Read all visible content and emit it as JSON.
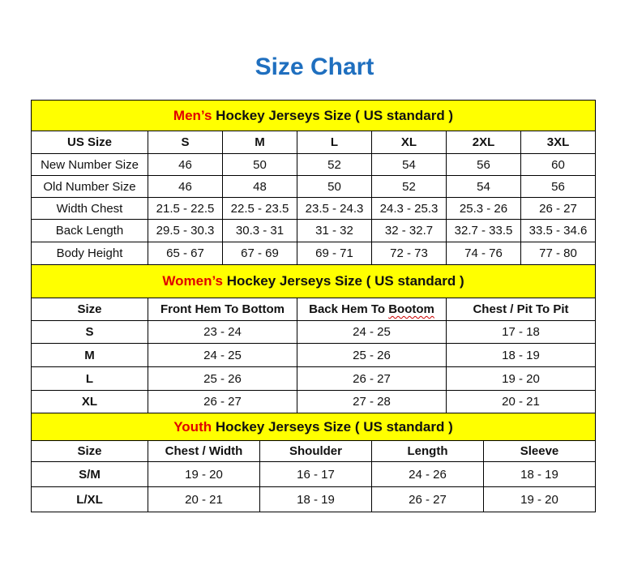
{
  "title": "Size Chart",
  "colors": {
    "title": "#1f6fbf",
    "header_bg": "#ffff00",
    "highlight": "#e00000"
  },
  "men": {
    "header_highlight": "Men’s",
    "header_rest": " Hockey Jerseys Size ( US standard )",
    "columns": [
      "US Size",
      "S",
      "M",
      "L",
      "XL",
      "2XL",
      "3XL"
    ],
    "rows": [
      [
        "New Number Size",
        "46",
        "50",
        "52",
        "54",
        "56",
        "60"
      ],
      [
        "Old Number Size",
        "46",
        "48",
        "50",
        "52",
        "54",
        "56"
      ],
      [
        "Width Chest",
        "21.5 - 22.5",
        "22.5 - 23.5",
        "23.5 - 24.3",
        "24.3 - 25.3",
        "25.3 - 26",
        "26 - 27"
      ],
      [
        "Back Length",
        "29.5 - 30.3",
        "30.3 - 31",
        "31 - 32",
        "32 - 32.7",
        "32.7 - 33.5",
        "33.5 - 34.6"
      ],
      [
        "Body Height",
        "65 - 67",
        "67 - 69",
        "69 - 71",
        "72 - 73",
        "74 - 76",
        "77 - 80"
      ]
    ]
  },
  "women": {
    "header_highlight": "Women’s",
    "header_rest": " Hockey Jerseys Size ( US standard )",
    "columns": [
      "Size",
      "Front Hem To Bottom",
      "Back Hem To Bootom",
      "Chest / Pit To Pit"
    ],
    "rows": [
      [
        "S",
        "23 - 24",
        "24 - 25",
        "17 - 18"
      ],
      [
        "M",
        "24 - 25",
        "25 - 26",
        "18 - 19"
      ],
      [
        "L",
        "25 - 26",
        "26 - 27",
        "19 - 20"
      ],
      [
        "XL",
        "26 - 27",
        "27 - 28",
        "20 - 21"
      ]
    ]
  },
  "youth": {
    "header_highlight": "Youth",
    "header_rest": " Hockey Jerseys Size ( US standard )",
    "columns": [
      "Size",
      "Chest / Width",
      "Shoulder",
      "Length",
      "Sleeve"
    ],
    "rows": [
      [
        "S/M",
        "19 - 20",
        "16 - 17",
        "24 - 26",
        "18 - 19"
      ],
      [
        "L/XL",
        "20 - 21",
        "18 - 19",
        "26 - 27",
        "19 - 20"
      ]
    ]
  }
}
